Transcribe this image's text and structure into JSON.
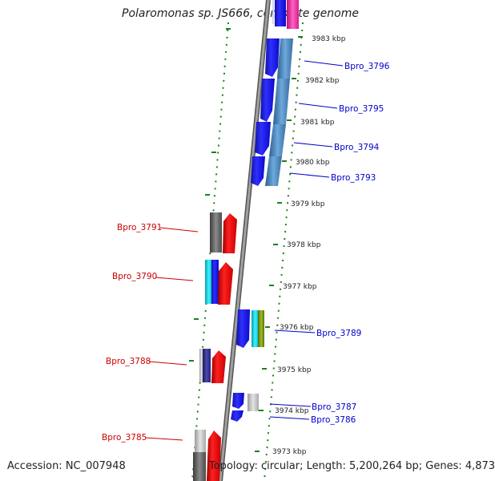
{
  "title": "Polaromonas sp. JS666, complete genome",
  "footer": {
    "accession": "Accession: NC_007948",
    "summary": "Topology: circular; Length: 5,200,264 bp; Genes: 4,873"
  },
  "colors": {
    "reverse_label": "#cc0000",
    "forward_label": "#0000cc",
    "backbone": "#8c8c8c",
    "ruler": "#1e7f1e"
  },
  "ticks": [
    "3983 kbp",
    "3982 kbp",
    "3981 kbp",
    "3980 kbp",
    "3979 kbp",
    "3978 kbp",
    "3977 kbp",
    "3976 kbp",
    "3975 kbp",
    "3974 kbp",
    "3973 kbp"
  ],
  "gene_labels": [
    "Bpro_3796",
    "Bpro_3795",
    "Bpro_3794",
    "Bpro_3793",
    "Bpro_3791",
    "Bpro_3790",
    "Bpro_3789",
    "Bpro_3788",
    "Bpro_3787",
    "Bpro_3786",
    "Bpro_3785"
  ]
}
